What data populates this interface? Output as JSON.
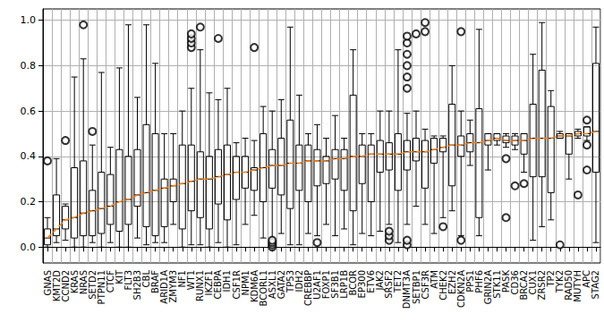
{
  "chart_data": {
    "type": "boxplot",
    "categories": [
      "GNAS",
      "KMT2D",
      "CCND2",
      "KRAS",
      "NRAS",
      "SETD2",
      "PTPN11",
      "CTCF",
      "KIT",
      "FLT3",
      "SH2B3",
      "CBL",
      "BRAF",
      "ARID1A",
      "ZMYM3",
      "NF1",
      "WT1",
      "RUNX1",
      "IKZF1",
      "CEBPA",
      "IDH1",
      "CSF1R",
      "NPM1",
      "KDM6A",
      "BCORL1",
      "ASXL1",
      "GATA2",
      "TP53",
      "IDH2",
      "CREBBP",
      "U2AF1",
      "FOXP1",
      "SF3B1",
      "LRP1B",
      "BCOR",
      "EP300",
      "ETV6",
      "JAK2",
      "SRSF2",
      "TET2",
      "DNMT3A",
      "SETBP1",
      "CSF3R",
      "ATM",
      "CHEK2",
      "EZH2",
      "CDKN2A",
      "PPS1",
      "PHF6",
      "GRIN2A",
      "STK11",
      "PASK",
      "CD36",
      "BRCA2",
      "CUX1",
      "ZRSR2",
      "TP2",
      "TYK2",
      "RAD50",
      "MUTYH",
      "APC",
      "STAG2"
    ],
    "series": [
      {
        "type": "boxplot",
        "color": "#000000",
        "values": [
          [
            0.0,
            0.01,
            0.04,
            0.08,
            0.13
          ],
          [
            0.02,
            0.05,
            0.08,
            0.23,
            0.39
          ],
          [
            0.03,
            0.08,
            0.12,
            0.18,
            0.19
          ],
          [
            0.0,
            0.04,
            0.13,
            0.35,
            0.75
          ],
          [
            0.0,
            0.05,
            0.15,
            0.38,
            0.83
          ],
          [
            0.02,
            0.05,
            0.16,
            0.25,
            0.45
          ],
          [
            0.0,
            0.06,
            0.17,
            0.33,
            0.77
          ],
          [
            0.02,
            0.1,
            0.18,
            0.32,
            0.44
          ],
          [
            0.0,
            0.07,
            0.2,
            0.43,
            0.79
          ],
          [
            0.0,
            0.1,
            0.21,
            0.4,
            0.98
          ],
          [
            0.04,
            0.18,
            0.23,
            0.43,
            0.66
          ],
          [
            0.01,
            0.09,
            0.24,
            0.54,
            0.98
          ],
          [
            0.02,
            0.05,
            0.25,
            0.5,
            0.81
          ],
          [
            0.02,
            0.09,
            0.26,
            0.3,
            0.5
          ],
          [
            0.1,
            0.2,
            0.27,
            0.3,
            0.5
          ],
          [
            0.0,
            0.08,
            0.28,
            0.45,
            0.6
          ],
          [
            0.01,
            0.16,
            0.29,
            0.45,
            0.7
          ],
          [
            0.01,
            0.13,
            0.3,
            0.42,
            0.87
          ],
          [
            0.0,
            0.08,
            0.3,
            0.4,
            0.68
          ],
          [
            0.02,
            0.19,
            0.31,
            0.43,
            0.65
          ],
          [
            0.0,
            0.12,
            0.32,
            0.45,
            0.7
          ],
          [
            0.01,
            0.21,
            0.33,
            0.4,
            0.46
          ],
          [
            0.1,
            0.26,
            0.33,
            0.4,
            0.48
          ],
          [
            0.14,
            0.25,
            0.34,
            0.35,
            0.47
          ],
          [
            0.04,
            0.2,
            0.35,
            0.5,
            0.62
          ],
          [
            0.03,
            0.26,
            0.36,
            0.43,
            0.6
          ],
          [
            0.06,
            0.23,
            0.36,
            0.48,
            0.65
          ],
          [
            0.01,
            0.17,
            0.37,
            0.56,
            0.97
          ],
          [
            0.01,
            0.25,
            0.37,
            0.45,
            0.67
          ],
          [
            0.06,
            0.2,
            0.38,
            0.45,
            0.5
          ],
          [
            0.05,
            0.27,
            0.38,
            0.43,
            0.54
          ],
          [
            0.1,
            0.28,
            0.38,
            0.4,
            0.48
          ],
          [
            0.05,
            0.3,
            0.39,
            0.43,
            0.58
          ],
          [
            0.08,
            0.25,
            0.39,
            0.43,
            0.48
          ],
          [
            0.01,
            0.16,
            0.4,
            0.67,
            0.87
          ],
          [
            0.06,
            0.28,
            0.4,
            0.45,
            0.5
          ],
          [
            0.05,
            0.2,
            0.41,
            0.45,
            0.5
          ],
          [
            0.07,
            0.33,
            0.41,
            0.47,
            0.6
          ],
          [
            0.1,
            0.34,
            0.41,
            0.46,
            0.6
          ],
          [
            0.02,
            0.25,
            0.41,
            0.5,
            0.87
          ],
          [
            0.1,
            0.34,
            0.42,
            0.47,
            0.59
          ],
          [
            0.18,
            0.38,
            0.42,
            0.48,
            0.6
          ],
          [
            0.1,
            0.26,
            0.42,
            0.47,
            0.52
          ],
          [
            0.06,
            0.37,
            0.43,
            0.48,
            0.49
          ],
          [
            0.13,
            0.42,
            0.44,
            0.48,
            0.49
          ],
          [
            0.16,
            0.27,
            0.45,
            0.63,
            0.8
          ],
          [
            0.05,
            0.4,
            0.45,
            0.49,
            0.6
          ],
          [
            0.36,
            0.42,
            0.46,
            0.5,
            0.56
          ],
          [
            0.05,
            0.13,
            0.46,
            0.61,
            0.96
          ],
          [
            0.34,
            0.45,
            0.47,
            0.5,
            0.5
          ],
          [
            0.45,
            0.47,
            0.48,
            0.5,
            0.5
          ],
          [
            0.44,
            0.46,
            0.47,
            0.49,
            0.5
          ],
          [
            0.43,
            0.45,
            0.47,
            0.49,
            0.5
          ],
          [
            0.33,
            0.41,
            0.47,
            0.5,
            0.5
          ],
          [
            0.03,
            0.31,
            0.48,
            0.63,
            0.85
          ],
          [
            0.09,
            0.31,
            0.48,
            0.78,
            0.99
          ],
          [
            0.12,
            0.24,
            0.48,
            0.62,
            0.69
          ],
          [
            0.48,
            0.48,
            0.49,
            0.5,
            0.51
          ],
          [
            0.3,
            0.41,
            0.49,
            0.5,
            0.5
          ],
          [
            0.48,
            0.49,
            0.5,
            0.51,
            0.52
          ],
          [
            0.47,
            0.49,
            0.5,
            0.53,
            0.53
          ],
          [
            0.02,
            0.33,
            0.51,
            0.81,
            0.97
          ]
        ]
      },
      {
        "type": "scatter",
        "marker": "circle",
        "color": "#000000",
        "values": [
          [
            0.38
          ],
          [],
          [
            0.47
          ],
          [],
          [
            0.98
          ],
          [
            0.51
          ],
          [],
          [],
          [],
          [],
          [],
          [],
          [],
          [],
          [],
          [],
          [
            0.88,
            0.9,
            0.92,
            0.94
          ],
          [
            0.97
          ],
          [],
          [
            0.92
          ],
          [],
          [],
          [],
          [
            0.88
          ],
          [],
          [
            0.0,
            0.01,
            0.02,
            0.03
          ],
          [],
          [],
          [],
          [],
          [
            0.02
          ],
          [],
          [],
          [],
          [],
          [],
          [],
          [],
          [
            0.03,
            0.05,
            0.07
          ],
          [],
          [
            0.01,
            0.03,
            0.7,
            0.75,
            0.8,
            0.85,
            0.9,
            0.93
          ],
          [
            0.94
          ],
          [
            0.95,
            0.99
          ],
          [],
          [
            0.09
          ],
          [],
          [
            0.03,
            0.95
          ],
          [],
          [],
          [],
          [],
          [
            0.13,
            0.39
          ],
          [
            0.27
          ],
          [
            0.28
          ],
          [],
          [],
          [],
          [
            0.01
          ],
          [],
          [
            0.23
          ],
          [
            0.34,
            0.45,
            0.56
          ],
          []
        ]
      },
      {
        "type": "line",
        "color": "#ff7f0e",
        "line_style": "dashed",
        "values": [
          0.04,
          0.08,
          0.12,
          0.13,
          0.15,
          0.16,
          0.17,
          0.18,
          0.2,
          0.21,
          0.23,
          0.24,
          0.25,
          0.26,
          0.27,
          0.28,
          0.29,
          0.3,
          0.3,
          0.31,
          0.32,
          0.33,
          0.33,
          0.34,
          0.35,
          0.36,
          0.36,
          0.37,
          0.37,
          0.38,
          0.38,
          0.38,
          0.39,
          0.39,
          0.4,
          0.4,
          0.41,
          0.41,
          0.41,
          0.41,
          0.42,
          0.42,
          0.42,
          0.43,
          0.44,
          0.45,
          0.45,
          0.46,
          0.46,
          0.47,
          0.48,
          0.47,
          0.47,
          0.47,
          0.48,
          0.48,
          0.48,
          0.49,
          0.49,
          0.5,
          0.5,
          0.51
        ]
      }
    ],
    "ylim": [
      -0.07,
      1.05
    ],
    "yticks": [
      {
        "value": 0,
        "label": "0.0"
      },
      0.2,
      0.4,
      0.6,
      0.8,
      {
        "value": 1,
        "label": "1.0"
      }
    ],
    "grid": true
  }
}
